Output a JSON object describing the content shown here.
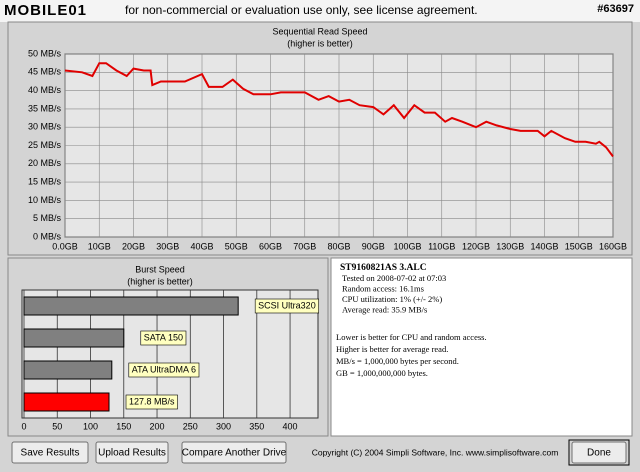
{
  "header": {
    "logo": "MOBILE01",
    "notice": "for non-commercial or evaluation use only, see license agreement.",
    "id": "#63697"
  },
  "chart_data": [
    {
      "type": "line",
      "title": "Sequential Read Speed",
      "subtitle": "(higher is better)",
      "color": "#e00000",
      "grid": true,
      "x": [
        0,
        5,
        8,
        10,
        12,
        15,
        18,
        20,
        23,
        25,
        25.5,
        28,
        35,
        40,
        42,
        46,
        49,
        52,
        55,
        60,
        63,
        70,
        74,
        77,
        80,
        83,
        86,
        90,
        93,
        96,
        99,
        102,
        105,
        108,
        111,
        113,
        116,
        120,
        123,
        126,
        130,
        133,
        138,
        140,
        142,
        146,
        149,
        152,
        155,
        156,
        158,
        160
      ],
      "values": [
        45.5,
        45,
        44,
        47.5,
        47.5,
        45.5,
        44,
        46,
        45.5,
        45.5,
        41.5,
        42.5,
        42.5,
        44.5,
        41,
        41,
        43,
        40.5,
        39,
        39,
        39.5,
        39.5,
        37.5,
        38.5,
        37,
        37.5,
        36,
        35.5,
        33.5,
        36,
        32.5,
        36,
        34,
        34,
        31.5,
        32.5,
        31.5,
        30,
        31.5,
        30.5,
        29.5,
        29,
        29,
        27.5,
        29,
        27,
        26,
        26,
        25.5,
        26,
        24.5,
        22
      ],
      "xlim": [
        0,
        160
      ],
      "xticks": [
        {
          "value": 0,
          "label": "0.0GB"
        },
        {
          "value": 10,
          "label": "10GB"
        },
        {
          "value": 20,
          "label": "20GB"
        },
        {
          "value": 30,
          "label": "30GB"
        },
        {
          "value": 40,
          "label": "40GB"
        },
        {
          "value": 50,
          "label": "50GB"
        },
        {
          "value": 60,
          "label": "60GB"
        },
        {
          "value": 70,
          "label": "70GB"
        },
        {
          "value": 80,
          "label": "80GB"
        },
        {
          "value": 90,
          "label": "90GB"
        },
        {
          "value": 100,
          "label": "100GB"
        },
        {
          "value": 110,
          "label": "110GB"
        },
        {
          "value": 120,
          "label": "120GB"
        },
        {
          "value": 130,
          "label": "130GB"
        },
        {
          "value": 140,
          "label": "140GB"
        },
        {
          "value": 150,
          "label": "150GB"
        },
        {
          "value": 160,
          "label": "160GB"
        }
      ],
      "ylim": [
        0,
        50
      ],
      "yticks": [
        {
          "value": 0,
          "label": "0 MB/s"
        },
        {
          "value": 5,
          "label": "5 MB/s"
        },
        {
          "value": 10,
          "label": "10 MB/s"
        },
        {
          "value": 15,
          "label": "15 MB/s"
        },
        {
          "value": 20,
          "label": "20 MB/s"
        },
        {
          "value": 25,
          "label": "25 MB/s"
        },
        {
          "value": 30,
          "label": "30 MB/s"
        },
        {
          "value": 35,
          "label": "35 MB/s"
        },
        {
          "value": 40,
          "label": "40 MB/s"
        },
        {
          "value": 45,
          "label": "45 MB/s"
        },
        {
          "value": 50,
          "label": "50 MB/s"
        }
      ]
    },
    {
      "type": "bar",
      "orientation": "horizontal",
      "title": "Burst Speed",
      "subtitle": "(higher is better)",
      "grid": true,
      "categories": [
        "SCSI Ultra320",
        "SATA 150",
        "ATA UltraDMA 6",
        null
      ],
      "values": [
        322,
        150,
        132,
        127.8
      ],
      "value_labels": [
        null,
        null,
        null,
        "127.8 MB/s"
      ],
      "colors": [
        "#808080",
        "#808080",
        "#808080",
        "#ff0000"
      ],
      "xlim": [
        0,
        442
      ],
      "xticks": [
        0,
        50,
        100,
        150,
        200,
        250,
        300,
        350,
        400
      ]
    }
  ],
  "info": {
    "drive": "ST9160821AS 3.ALC",
    "lines": [
      "Tested on 2008-07-02 at 07:03",
      "Random access: 16.1ms",
      "CPU utilization: 1% (+/- 2%)",
      "Average read: 35.9 MB/s"
    ],
    "notes": [
      "Lower is better for CPU and random access.",
      "Higher is better for average read.",
      "MB/s = 1,000,000 bytes per second.",
      "GB = 1,000,000,000 bytes."
    ]
  },
  "footer": {
    "buttons": [
      "Save Results",
      "Upload Results",
      "Compare Another Drive"
    ],
    "copyright": "Copyright (C) 2004 Simpli Software, Inc. www.simplisoftware.com",
    "done": "Done"
  }
}
